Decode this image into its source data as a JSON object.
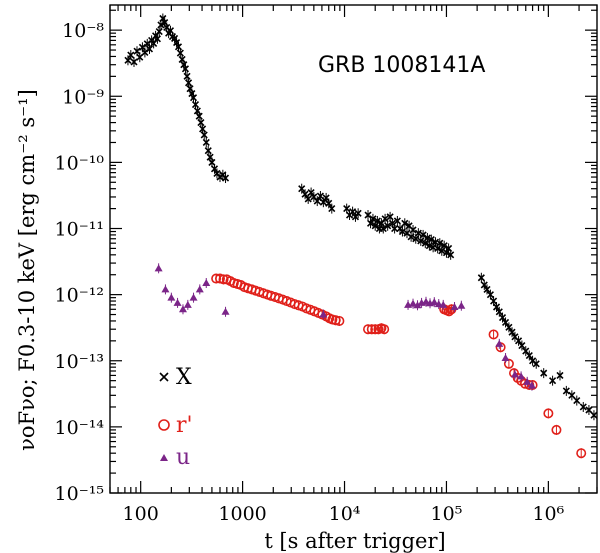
{
  "chart_data": {
    "type": "scatter",
    "title": "",
    "annotation": "GRB 1008141A",
    "xlabel": "t [s after trigger]",
    "ylabel": "νoFνo;  F0.3-10 keV [erg cm⁻² s⁻¹]",
    "xscale": "log",
    "yscale": "log",
    "xlim": [
      50,
      3000000
    ],
    "ylim": [
      1e-15,
      2.4e-08
    ],
    "x_tick_labels": [
      "100",
      "1000",
      "10⁴",
      "10⁵",
      "10⁶"
    ],
    "y_tick_labels": [
      "10⁻¹⁵",
      "10⁻¹⁴",
      "10⁻¹³",
      "10⁻¹²",
      "10⁻¹¹",
      "10⁻¹⁰",
      "10⁻⁹",
      "10⁻⁸"
    ],
    "grid": false,
    "legend_placement": "bottom-left",
    "series": [
      {
        "name": "X",
        "marker": "cross",
        "color": "#000000",
        "points": [
          [
            75,
            3.5e-09
          ],
          [
            80,
            4.2e-09
          ],
          [
            86,
            3.3e-09
          ],
          [
            92,
            4.8e-09
          ],
          [
            98,
            3.9e-09
          ],
          [
            104,
            5.5e-09
          ],
          [
            110,
            4.6e-09
          ],
          [
            116,
            6.2e-09
          ],
          [
            122,
            5.2e-09
          ],
          [
            128,
            7e-09
          ],
          [
            134,
            6.3e-09
          ],
          [
            140,
            8.2e-09
          ],
          [
            146,
            7.4e-09
          ],
          [
            152,
            9.5e-09
          ],
          [
            158,
            1.2e-08
          ],
          [
            165,
            1.5e-08
          ],
          [
            172,
            1.3e-08
          ],
          [
            180,
            1.1e-08
          ],
          [
            188,
            9e-09
          ],
          [
            196,
            9.8e-09
          ],
          [
            205,
            8e-09
          ],
          [
            215,
            7.5e-09
          ],
          [
            225,
            6.5e-09
          ],
          [
            235,
            5.6e-09
          ],
          [
            245,
            4.5e-09
          ],
          [
            255,
            3.6e-09
          ],
          [
            265,
            3e-09
          ],
          [
            275,
            2.6e-09
          ],
          [
            285,
            2e-09
          ],
          [
            295,
            1.6e-09
          ],
          [
            305,
            1.3e-09
          ],
          [
            318,
            1.1e-09
          ],
          [
            330,
            9.5e-10
          ],
          [
            345,
            7.5e-10
          ],
          [
            360,
            6e-10
          ],
          [
            375,
            5e-10
          ],
          [
            390,
            4e-10
          ],
          [
            405,
            3.2e-10
          ],
          [
            420,
            2.6e-10
          ],
          [
            440,
            2e-10
          ],
          [
            460,
            1.5e-10
          ],
          [
            480,
            1.2e-10
          ],
          [
            500,
            1e-10
          ],
          [
            530,
            8e-11
          ],
          [
            560,
            6.8e-11
          ],
          [
            600,
            6e-11
          ],
          [
            640,
            6.5e-11
          ],
          [
            680,
            5.8e-11
          ],
          [
            3800,
            4e-11
          ],
          [
            4100,
            3.3e-11
          ],
          [
            4400,
            2.8e-11
          ],
          [
            4700,
            3.5e-11
          ],
          [
            5000,
            3e-11
          ],
          [
            5400,
            2.6e-11
          ],
          [
            5800,
            3.1e-11
          ],
          [
            6200,
            2.5e-11
          ],
          [
            6600,
            2.9e-11
          ],
          [
            7000,
            2.4e-11
          ],
          [
            7500,
            2e-11
          ],
          [
            10500,
            2e-11
          ],
          [
            11200,
            1.6e-11
          ],
          [
            12000,
            1.8e-11
          ],
          [
            12800,
            1.5e-11
          ],
          [
            13600,
            1.7e-11
          ],
          [
            17000,
            1.6e-11
          ],
          [
            18000,
            1.2e-11
          ],
          [
            19000,
            1.4e-11
          ],
          [
            20000,
            1.1e-11
          ],
          [
            21000,
            1.3e-11
          ],
          [
            22000,
            1e-11
          ],
          [
            23000,
            1.2e-11
          ],
          [
            24000,
            1e-11
          ],
          [
            25000,
            1.4e-11
          ],
          [
            26500,
            1.1e-11
          ],
          [
            28000,
            1.5e-11
          ],
          [
            29500,
            1.2e-11
          ],
          [
            31000,
            1e-11
          ],
          [
            33000,
            1.3e-11
          ],
          [
            35000,
            1e-11
          ],
          [
            37000,
            9e-12
          ],
          [
            39000,
            1.2e-11
          ],
          [
            41000,
            8.5e-12
          ],
          [
            43000,
            1.1e-11
          ],
          [
            45000,
            7.5e-12
          ],
          [
            47000,
            9.5e-12
          ],
          [
            50000,
            7e-12
          ],
          [
            53000,
            8.5e-12
          ],
          [
            56000,
            6.5e-12
          ],
          [
            59000,
            8e-12
          ],
          [
            62000,
            6e-12
          ],
          [
            65000,
            7.2e-12
          ],
          [
            68000,
            5.5e-12
          ],
          [
            71000,
            6.8e-12
          ],
          [
            74000,
            5.2e-12
          ],
          [
            78000,
            6.2e-12
          ],
          [
            82000,
            5e-12
          ],
          [
            86000,
            6e-12
          ],
          [
            90000,
            4.6e-12
          ],
          [
            95000,
            5.5e-12
          ],
          [
            100000,
            4.3e-12
          ],
          [
            105000,
            5e-12
          ],
          [
            110000,
            4e-12
          ],
          [
            220000,
            1.8e-12
          ],
          [
            235000,
            1.4e-12
          ],
          [
            250000,
            1.2e-12
          ],
          [
            270000,
            1e-12
          ],
          [
            290000,
            8e-13
          ],
          [
            310000,
            6.5e-13
          ],
          [
            330000,
            5.5e-13
          ],
          [
            355000,
            4.5e-13
          ],
          [
            380000,
            3.8e-13
          ],
          [
            410000,
            3.2e-13
          ],
          [
            440000,
            2.7e-13
          ],
          [
            470000,
            2.3e-13
          ],
          [
            510000,
            2e-13
          ],
          [
            550000,
            1.7e-13
          ],
          [
            600000,
            1.4e-13
          ],
          [
            650000,
            1.2e-13
          ],
          [
            700000,
            1e-13
          ],
          [
            760000,
            9e-14
          ],
          [
            900000,
            6.5e-14
          ],
          [
            1100000,
            5e-14
          ],
          [
            1300000,
            6e-14
          ],
          [
            1500000,
            3.5e-14
          ],
          [
            1700000,
            3e-14
          ],
          [
            1900000,
            2.5e-14
          ],
          [
            2200000,
            2e-14
          ],
          [
            2500000,
            1.8e-14
          ],
          [
            2800000,
            1.5e-14
          ]
        ]
      },
      {
        "name": "r'",
        "marker": "open-circle",
        "color": "#e0201a",
        "points": [
          [
            550,
            1.75e-12
          ],
          [
            600,
            1.75e-12
          ],
          [
            650,
            1.7e-12
          ],
          [
            700,
            1.7e-12
          ],
          [
            760,
            1.6e-12
          ],
          [
            820,
            1.5e-12
          ],
          [
            890,
            1.45e-12
          ],
          [
            960,
            1.4e-12
          ],
          [
            1040,
            1.3e-12
          ],
          [
            1130,
            1.25e-12
          ],
          [
            1230,
            1.2e-12
          ],
          [
            1340,
            1.15e-12
          ],
          [
            1460,
            1.1e-12
          ],
          [
            1600,
            1.05e-12
          ],
          [
            1750,
            1e-12
          ],
          [
            1900,
            9.6e-13
          ],
          [
            2080,
            9.2e-13
          ],
          [
            2270,
            8.8e-13
          ],
          [
            2480,
            8.4e-13
          ],
          [
            2710,
            8e-13
          ],
          [
            2960,
            7.6e-13
          ],
          [
            3240,
            7.2e-13
          ],
          [
            3540,
            6.9e-13
          ],
          [
            3870,
            6.6e-13
          ],
          [
            4230,
            6.2e-13
          ],
          [
            4630,
            5.9e-13
          ],
          [
            5060,
            5.6e-13
          ],
          [
            5530,
            5.3e-13
          ],
          [
            6050,
            5e-13
          ],
          [
            6600,
            4.7e-13
          ],
          [
            7100,
            4.4e-13
          ],
          [
            7600,
            4.2e-13
          ],
          [
            8200,
            4.1e-13
          ],
          [
            8900,
            4e-13
          ],
          [
            17000,
            3e-13
          ],
          [
            18500,
            3e-13
          ],
          [
            20000,
            3e-13
          ],
          [
            21500,
            3e-13
          ],
          [
            23000,
            3.1e-13
          ],
          [
            24500,
            3e-13
          ],
          [
            95000,
            6e-13
          ],
          [
            100000,
            5.8e-13
          ],
          [
            106000,
            5.6e-13
          ],
          [
            112000,
            6e-13
          ],
          [
            290000,
            2.5e-13
          ],
          [
            340000,
            1.6e-13
          ],
          [
            410000,
            9e-14
          ],
          [
            460000,
            6.5e-14
          ],
          [
            500000,
            5.5e-14
          ],
          [
            540000,
            5e-14
          ],
          [
            590000,
            4.5e-14
          ],
          [
            650000,
            4.3e-14
          ],
          [
            700000,
            4.3e-14
          ],
          [
            1000000,
            1.6e-14
          ],
          [
            1200000,
            9e-15
          ],
          [
            2100000,
            4e-15
          ]
        ]
      },
      {
        "name": "u",
        "marker": "filled-triangle",
        "color": "#7b2588",
        "points": [
          [
            150,
            2.5e-12
          ],
          [
            175,
            1.2e-12
          ],
          [
            200,
            9e-13
          ],
          [
            230,
            7.5e-13
          ],
          [
            260,
            6e-13
          ],
          [
            290,
            7e-13
          ],
          [
            330,
            9e-13
          ],
          [
            380,
            1.2e-12
          ],
          [
            440,
            1.5e-12
          ],
          [
            680,
            5.5e-13
          ],
          [
            6200,
            5e-13
          ],
          [
            42000,
            7e-13
          ],
          [
            47000,
            7.3e-13
          ],
          [
            52000,
            6.9e-13
          ],
          [
            57000,
            7.5e-13
          ],
          [
            63000,
            7.8e-13
          ],
          [
            69000,
            7.4e-13
          ],
          [
            76000,
            7.7e-13
          ],
          [
            84000,
            7.2e-13
          ],
          [
            93000,
            7e-13
          ],
          [
            120000,
            6.5e-13
          ],
          [
            140000,
            6.8e-13
          ],
          [
            330000,
            1.8e-13
          ],
          [
            380000,
            1.1e-13
          ],
          [
            470000,
            6.2e-14
          ],
          [
            540000,
            5.8e-14
          ],
          [
            620000,
            4.8e-14
          ],
          [
            690000,
            4.2e-14
          ]
        ]
      }
    ]
  }
}
